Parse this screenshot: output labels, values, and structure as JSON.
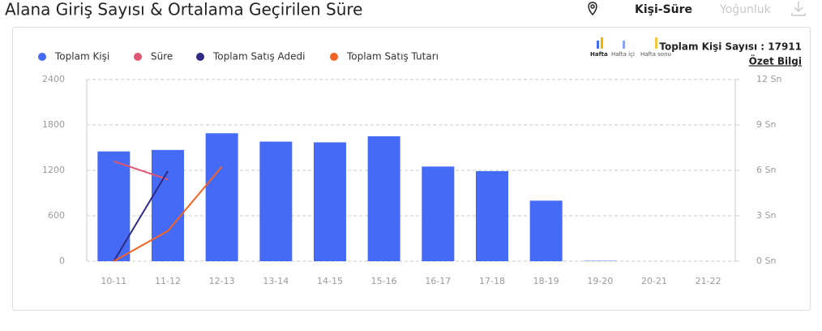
{
  "header": {
    "title": "Alana Giriş Sayısı & Ortalama Geçirilen Süre",
    "tabs": [
      "Kişi-Süre",
      "Yoğunluk"
    ]
  },
  "summary": {
    "periods": [
      "Hafta",
      "Hafta içi",
      "Hafta sonu"
    ],
    "total": "Toplam Kişi Sayısı : 17911",
    "link": "Özet Bilgi"
  },
  "chart_data": {
    "type": "bar",
    "categories": [
      "10-11",
      "11-12",
      "12-13",
      "13-14",
      "14-15",
      "15-16",
      "16-17",
      "17-18",
      "18-19",
      "19-20",
      "20-21",
      "21-22"
    ],
    "series": [
      {
        "name": "Toplam Kişi",
        "color": "#456bf6",
        "values": [
          1450,
          1470,
          1690,
          1580,
          1570,
          1650,
          1250,
          1190,
          800,
          5,
          0,
          0
        ]
      },
      {
        "name": "Süre",
        "color": "#e0566f",
        "type": "line",
        "axis": "y2",
        "values": [
          6.6,
          5.4,
          null,
          null,
          null,
          null,
          null,
          null,
          null,
          null,
          null,
          null
        ]
      },
      {
        "name": "Toplam Satış Adedi",
        "color": "#2e2a85",
        "type": "line",
        "values": [
          0,
          1190,
          null,
          null,
          null,
          null,
          null,
          null,
          null,
          null,
          null,
          null
        ]
      },
      {
        "name": "Toplam Satış Tutarı",
        "color": "#f26522",
        "type": "line",
        "values": [
          0,
          400,
          1250,
          null,
          null,
          null,
          null,
          null,
          null,
          null,
          null,
          null
        ]
      }
    ],
    "ylim": [
      0,
      2400
    ],
    "yticks": [
      0,
      600,
      1200,
      1800,
      2400
    ],
    "y2lim": [
      0,
      12
    ],
    "y2ticks": [
      {
        "value": 0,
        "label": "0 Sn"
      },
      {
        "value": 3,
        "label": "3 Sn"
      },
      {
        "value": 6,
        "label": "6 Sn"
      },
      {
        "value": 9,
        "label": "9 Sn"
      },
      {
        "value": 12,
        "label": "12 Sn"
      }
    ],
    "grid": true
  }
}
